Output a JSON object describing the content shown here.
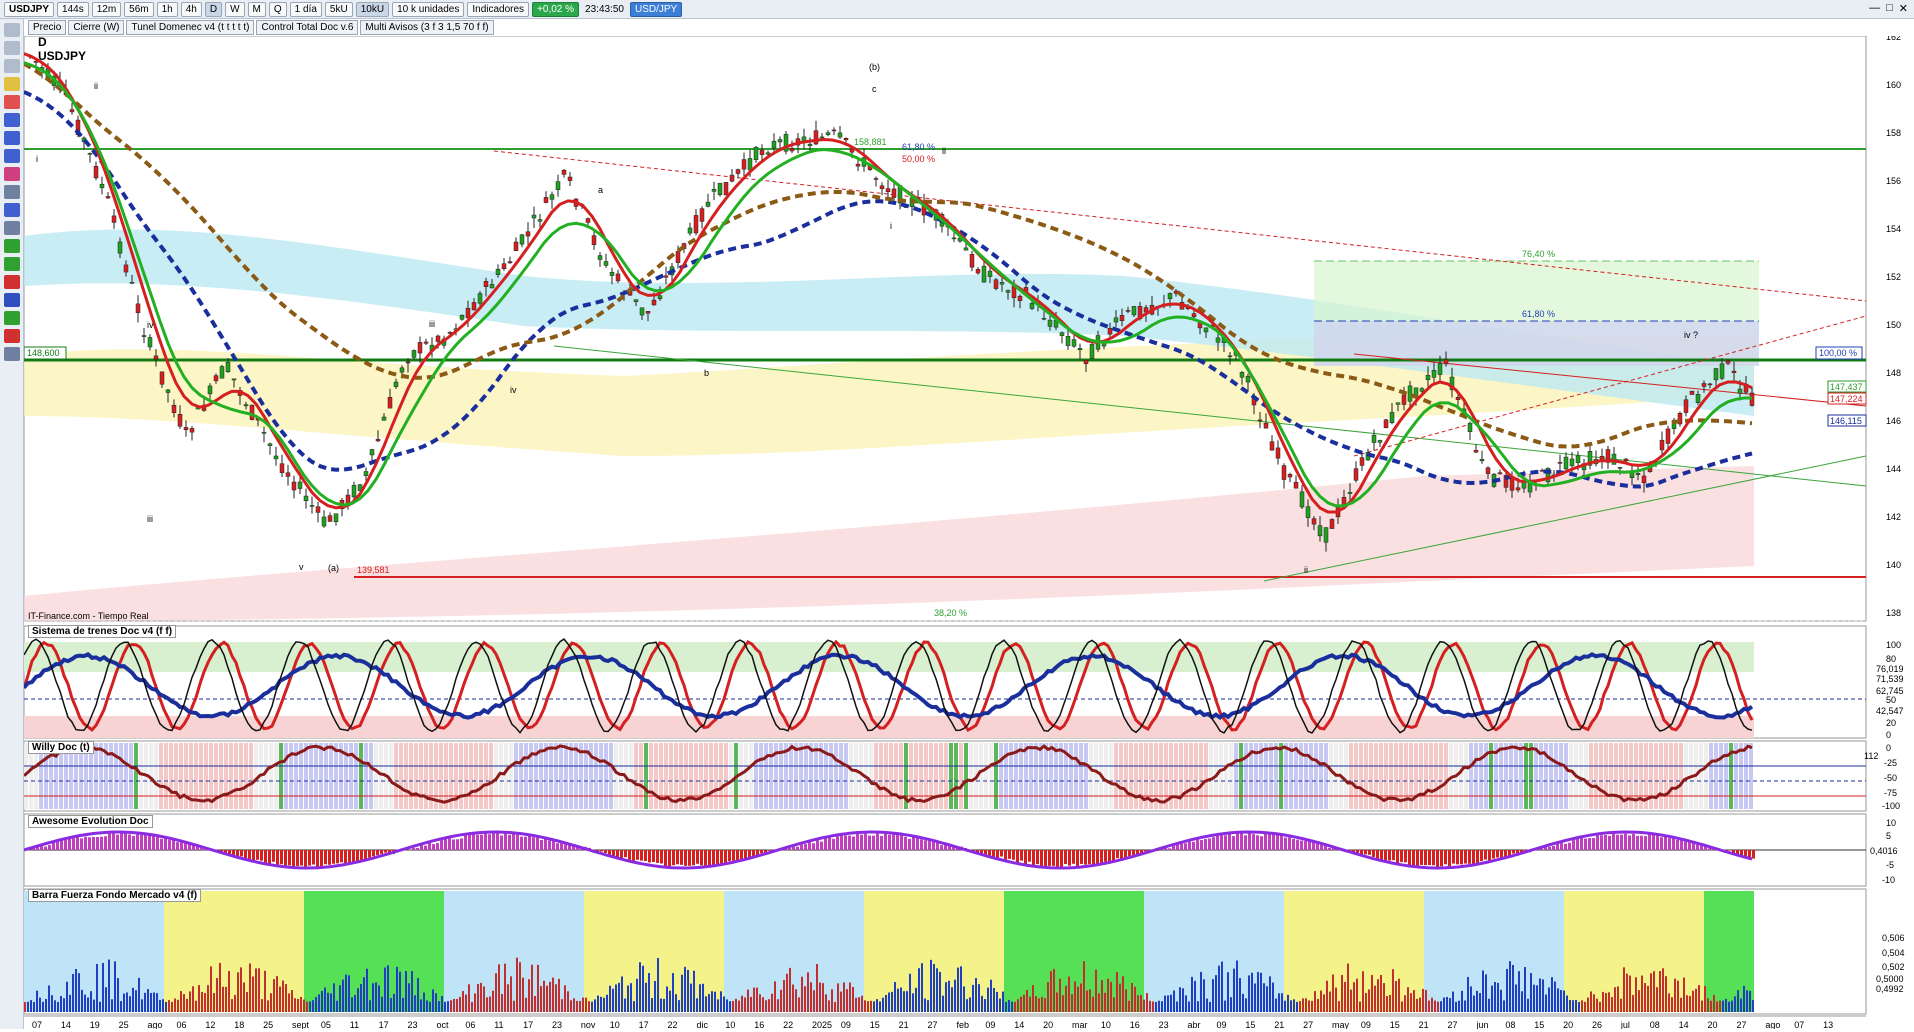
{
  "toolbar": {
    "symbol": "USDJPY",
    "timeframes": [
      "144s",
      "12m",
      "56m",
      "1h",
      "4h",
      "D",
      "W",
      "M",
      "Q"
    ],
    "active_timeframe": "D",
    "period": "1 día",
    "bars": [
      "5kU",
      "10kU"
    ],
    "units": "10 k unidades",
    "indicators_label": "Indicadores",
    "change": "+0,02 %",
    "clock": "23:43:50",
    "pair": "USD/JPY"
  },
  "indicator_tabs": [
    "Precio",
    "Cierre (W)",
    "Tunel Domenec v4 (t t t t t)",
    "Control Total Doc v.6",
    "Multi Avisos (3 f 3 1,5 70 f f)"
  ],
  "main": {
    "timeframe_letter": "D",
    "symbol_label": "USDJPY",
    "source": "IT-Finance.com - Tiempo Real",
    "price_axis": [
      "162",
      "160",
      "158",
      "156",
      "154",
      "152",
      "150",
      "148",
      "146",
      "144",
      "142",
      "140",
      "138"
    ],
    "horizontal_levels": [
      {
        "label": "158,881",
        "color": "#2f9e2f"
      },
      {
        "label": "148,600",
        "color": "#127a12"
      },
      {
        "label": "139,581",
        "color": "#d42020"
      }
    ],
    "fib_labels": [
      "76,40 %",
      "61,80 %",
      "100,00 %",
      "38,20 %",
      "61,80 %",
      "50,00 %"
    ],
    "wave_labels": [
      "ii",
      "i",
      "iii",
      "iv",
      "v",
      "(a)",
      "a",
      "b",
      "(b)",
      "c",
      "i",
      "ii",
      "iv ?",
      "ii",
      "iv",
      "iii"
    ],
    "right_tags": [
      "147,437",
      "147,224",
      "146,115"
    ]
  },
  "panels": [
    {
      "title": "Sistema de trenes Doc v4 (f f)",
      "axis": [
        "100",
        "80",
        "76,019",
        "71,539",
        "62,745",
        "50",
        "42,547",
        "20",
        "0"
      ]
    },
    {
      "title": "Willy Doc (t)",
      "axis": [
        "0",
        "-25",
        "-50",
        "-75",
        "-100",
        "112"
      ]
    },
    {
      "title": "Awesome Evolution Doc",
      "axis": [
        "10",
        "5",
        "0,4016",
        "-5",
        "-10"
      ]
    },
    {
      "title": "Barra Fuerza Fondo Mercado v4 (f)",
      "axis": [
        "0,506",
        "0,504",
        "0,502",
        "0,5000",
        "0,4992"
      ]
    }
  ],
  "date_axis": [
    "07",
    "14",
    "19",
    "25",
    "ago",
    "06",
    "12",
    "18",
    "25",
    "sept",
    "05",
    "11",
    "17",
    "23",
    "oct",
    "06",
    "11",
    "17",
    "23",
    "nov",
    "10",
    "17",
    "22",
    "dic",
    "10",
    "16",
    "22",
    "2025",
    "09",
    "15",
    "21",
    "27",
    "feb",
    "09",
    "14",
    "20",
    "mar",
    "10",
    "16",
    "23",
    "abr",
    "09",
    "15",
    "21",
    "27",
    "may",
    "09",
    "15",
    "21",
    "27",
    "jun",
    "08",
    "15",
    "20",
    "26",
    "jul",
    "08",
    "14",
    "20",
    "27",
    "ago",
    "07",
    "13"
  ],
  "colors": {
    "bull": "#1fa01f",
    "bear": "#d42020",
    "blue": "#1a2f9c",
    "brown": "#8b5a14"
  }
}
